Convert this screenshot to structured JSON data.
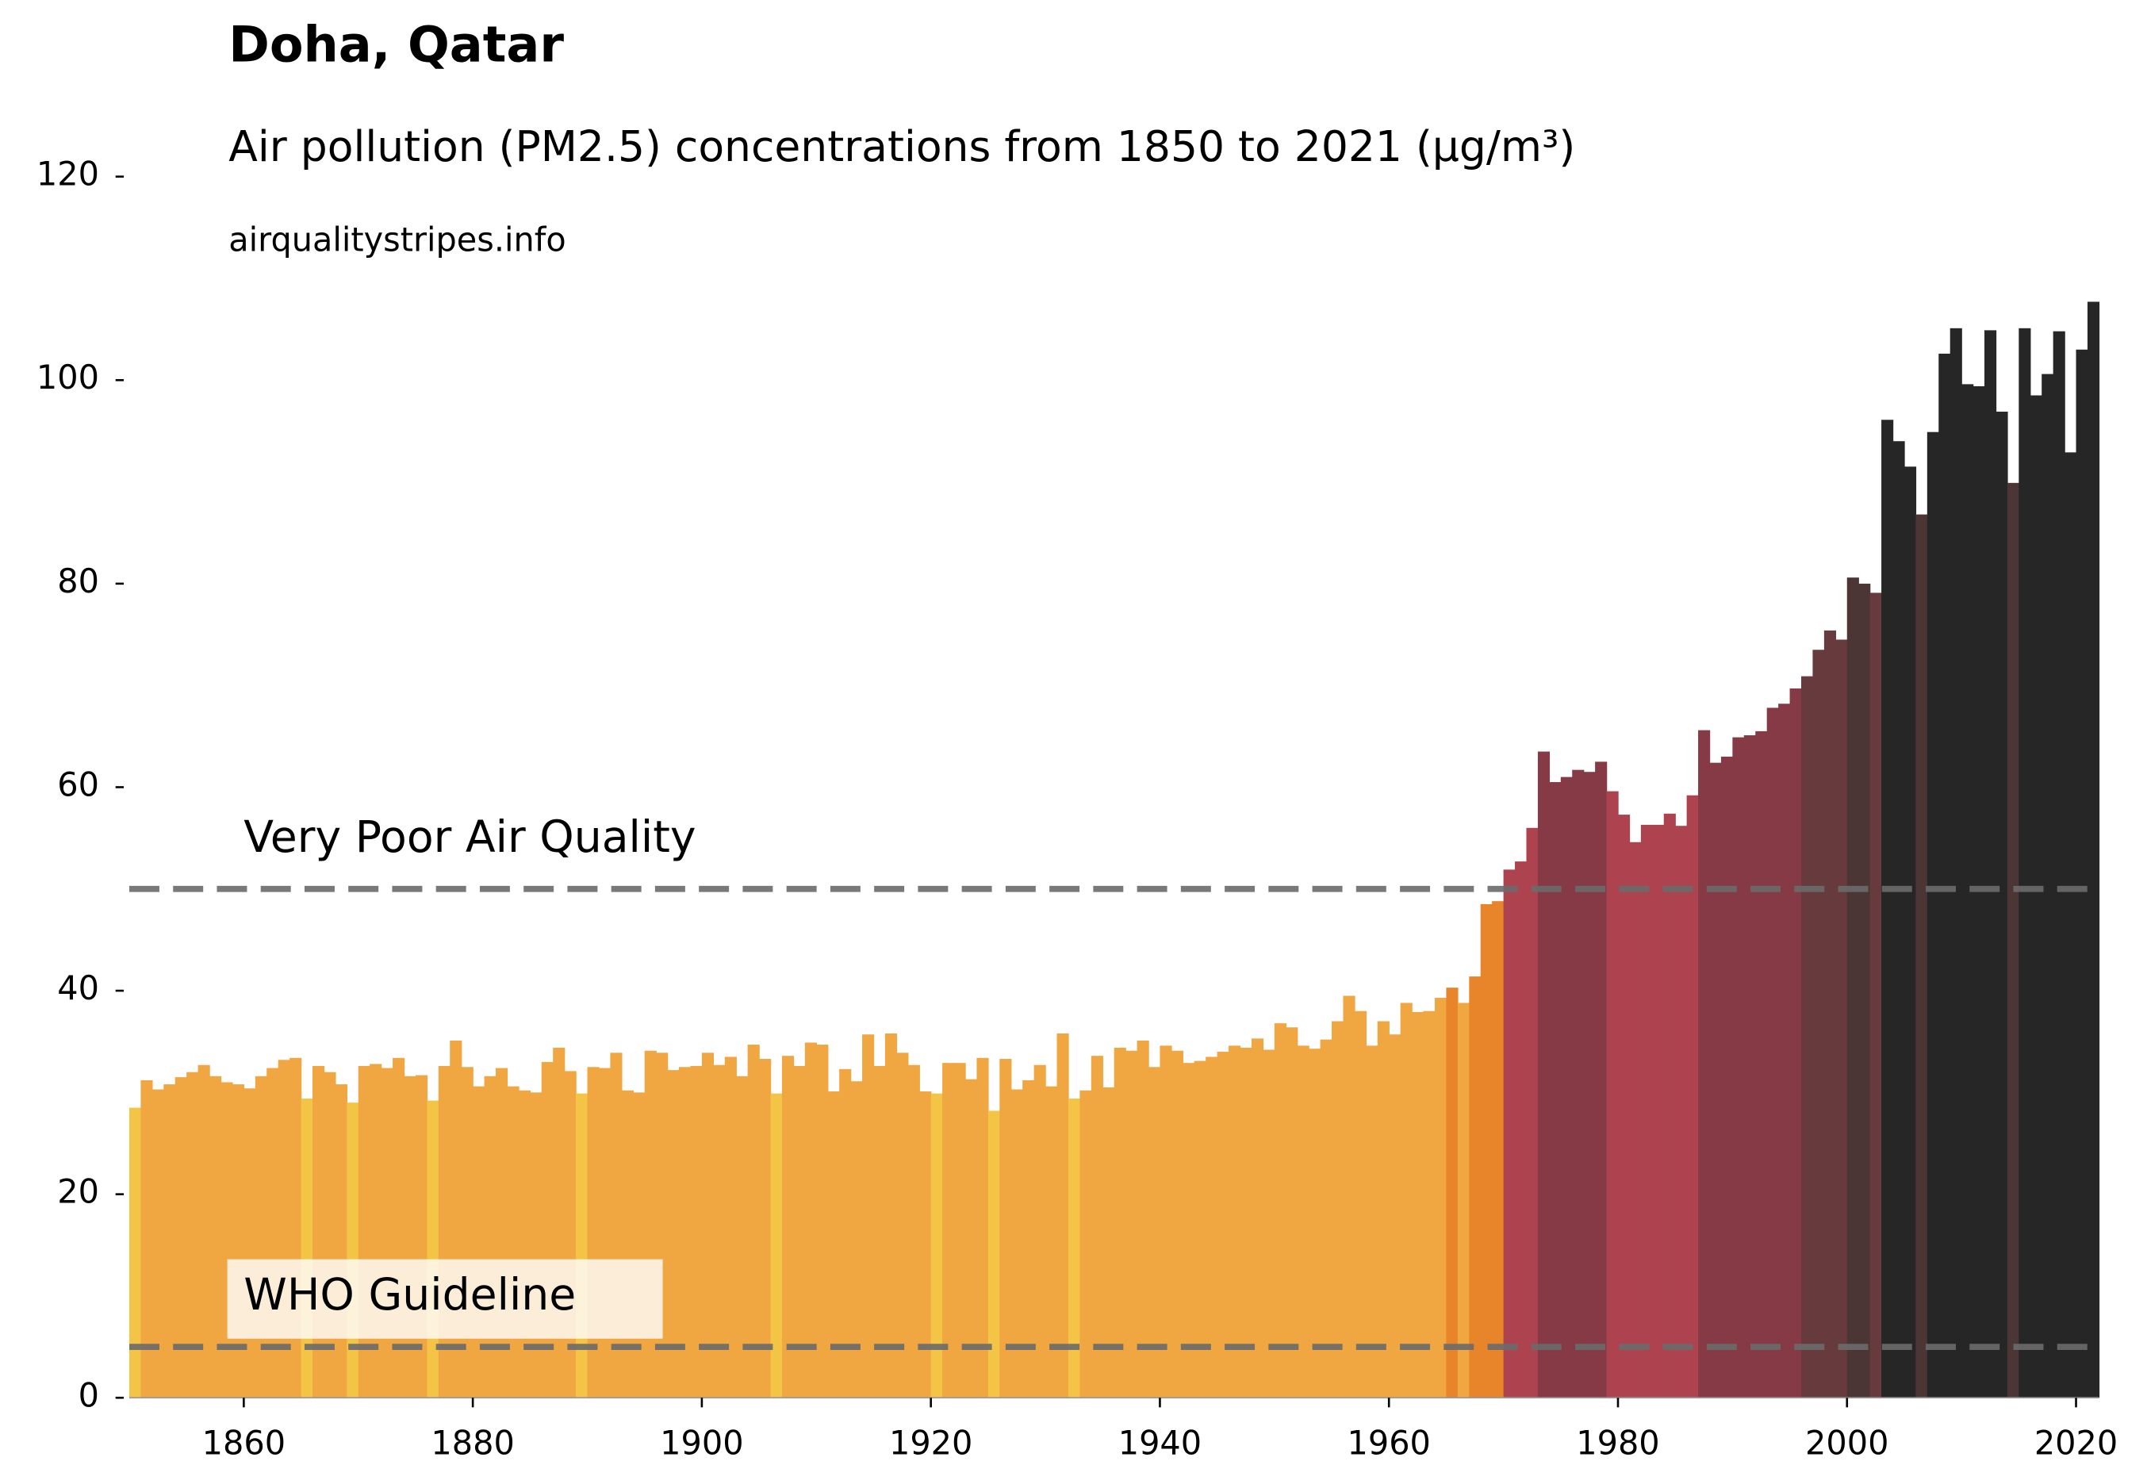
{
  "chart_data": {
    "type": "bar",
    "title": "Doha, Qatar",
    "subtitle": "Air pollution (PM2.5) concentrations from 1850 to 2021 (µg/m³)",
    "source": "airqualitystripes.info",
    "x": [
      1850,
      1851,
      1852,
      1853,
      1854,
      1855,
      1856,
      1857,
      1858,
      1859,
      1860,
      1861,
      1862,
      1863,
      1864,
      1865,
      1866,
      1867,
      1868,
      1869,
      1870,
      1871,
      1872,
      1873,
      1874,
      1875,
      1876,
      1877,
      1878,
      1879,
      1880,
      1881,
      1882,
      1883,
      1884,
      1885,
      1886,
      1887,
      1888,
      1889,
      1890,
      1891,
      1892,
      1893,
      1894,
      1895,
      1896,
      1897,
      1898,
      1899,
      1900,
      1901,
      1902,
      1903,
      1904,
      1905,
      1906,
      1907,
      1908,
      1909,
      1910,
      1911,
      1912,
      1913,
      1914,
      1915,
      1916,
      1917,
      1918,
      1919,
      1920,
      1921,
      1922,
      1923,
      1924,
      1925,
      1926,
      1927,
      1928,
      1929,
      1930,
      1931,
      1932,
      1933,
      1934,
      1935,
      1936,
      1937,
      1938,
      1939,
      1940,
      1941,
      1942,
      1943,
      1944,
      1945,
      1946,
      1947,
      1948,
      1949,
      1950,
      1951,
      1952,
      1953,
      1954,
      1955,
      1956,
      1957,
      1958,
      1959,
      1960,
      1961,
      1962,
      1963,
      1964,
      1965,
      1966,
      1967,
      1968,
      1969,
      1970,
      1971,
      1972,
      1973,
      1974,
      1975,
      1976,
      1977,
      1978,
      1979,
      1980,
      1981,
      1982,
      1983,
      1984,
      1985,
      1986,
      1987,
      1988,
      1989,
      1990,
      1991,
      1992,
      1993,
      1994,
      1995,
      1996,
      1997,
      1998,
      1999,
      2000,
      2001,
      2002,
      2003,
      2004,
      2005,
      2006,
      2007,
      2008,
      2009,
      2010,
      2011,
      2012,
      2013,
      2014,
      2015,
      2016,
      2017,
      2018,
      2019,
      2020,
      2021
    ],
    "values": [
      28.5,
      31.2,
      30.3,
      30.8,
      31.5,
      32,
      32.7,
      31.6,
      31,
      30.8,
      30.4,
      31.6,
      32.4,
      33.2,
      33.4,
      29.4,
      32.6,
      32,
      30.8,
      29,
      32.6,
      32.8,
      32.4,
      33.4,
      31.6,
      31.7,
      29.2,
      32.6,
      35.1,
      32.5,
      30.6,
      31.6,
      32.4,
      30.6,
      30.2,
      30,
      33,
      34.4,
      32.1,
      29.9,
      32.5,
      32.4,
      33.9,
      30.2,
      30,
      34.1,
      33.9,
      32.2,
      32.5,
      32.6,
      33.9,
      32.7,
      33.5,
      31.6,
      34.7,
      33.3,
      29.9,
      33.6,
      32.6,
      34.9,
      34.7,
      30.1,
      32.3,
      31.1,
      35.7,
      32.6,
      35.8,
      33.9,
      32.7,
      30.1,
      29.9,
      32.9,
      32.9,
      31.3,
      33.4,
      28.2,
      33.3,
      30.3,
      31.2,
      32.7,
      30.6,
      35.8,
      29.4,
      30.2,
      33.6,
      30.5,
      34.4,
      34.1,
      35.1,
      32.5,
      34.6,
      34.1,
      32.9,
      33.1,
      33.5,
      34,
      34.6,
      34.4,
      35.3,
      34.2,
      36.8,
      36.4,
      34.6,
      34.3,
      35.2,
      37,
      39.5,
      38,
      34.6,
      37,
      35.7,
      38.8,
      37.9,
      38,
      39.3,
      40.3,
      38.8,
      41.4,
      48.5,
      48.8,
      51.9,
      52.7,
      56,
      63.5,
      60.5,
      61,
      61.7,
      61.5,
      62.5,
      59.6,
      57.3,
      54.6,
      56.3,
      56.3,
      57.4,
      56.2,
      59.2,
      65.6,
      62.4,
      63,
      64.9,
      65.1,
      65.5,
      67.8,
      68.2,
      69.7,
      70.9,
      73.5,
      75.4,
      74.5,
      80.6,
      80,
      79.1,
      96.1,
      94,
      91.5,
      86.8,
      94.9,
      102.6,
      105.1,
      99.6,
      99.4,
      104.9,
      96.9,
      89.9,
      105.1,
      98.5,
      100.6,
      104.8,
      92.9,
      103,
      107.7
    ],
    "color_bins": {
      "edges": [
        30,
        40,
        50,
        60,
        70,
        80,
        90
      ],
      "colors": [
        "#f4c446",
        "#f0a641",
        "#e8852a",
        "#ae4350",
        "#853a46",
        "#673a3e",
        "#4c3535",
        "#262626"
      ]
    },
    "xlim": [
      1850,
      2022
    ],
    "ylim": [
      0,
      120
    ],
    "xticks": [
      1860,
      1880,
      1900,
      1920,
      1940,
      1960,
      1980,
      2000,
      2020
    ],
    "yticks": [
      0,
      20,
      40,
      60,
      80,
      100,
      120
    ],
    "reference_lines": [
      {
        "value": 50,
        "label": "Very Poor Air Quality"
      },
      {
        "value": 5,
        "label": "WHO Guideline"
      }
    ]
  }
}
